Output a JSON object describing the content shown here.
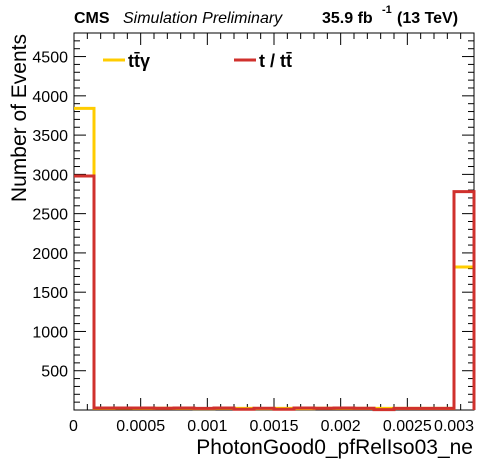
{
  "header": {
    "experiment": "CMS",
    "status": "Simulation Preliminary",
    "luminosity": "35.9 fb",
    "luminosity_exp": "-1",
    "energy": "(13 TeV)"
  },
  "chart_data": {
    "type": "step-histogram",
    "xlabel": "PhotonGood0_pfRelIso03_ne",
    "ylabel": "Number of Events",
    "xlim": [
      0,
      0.003
    ],
    "ylim": [
      0,
      4800
    ],
    "x_tick_labels": [
      "0",
      "0.0005",
      "0.001",
      "0.0015",
      "0.002",
      "0.0025",
      "0.003"
    ],
    "x_ticks": [
      0,
      0.0005,
      0.001,
      0.0015,
      0.002,
      0.0025,
      0.003
    ],
    "y_tick_labels": [
      "500",
      "1000",
      "1500",
      "2000",
      "2500",
      "3000",
      "3500",
      "4000",
      "4500"
    ],
    "y_ticks": [
      500,
      1000,
      1500,
      2000,
      2500,
      3000,
      3500,
      4000,
      4500
    ],
    "bin_edges": [
      0,
      0.00015,
      0.0003,
      0.00045,
      0.0006,
      0.00075,
      0.0009,
      0.00105,
      0.0012,
      0.00135,
      0.0015,
      0.00165,
      0.0018,
      0.00195,
      0.0021,
      0.00225,
      0.0024,
      0.00255,
      0.0027,
      0.00285,
      0.003
    ],
    "series": [
      {
        "name": "tt̄γ",
        "color": "#FFCC00",
        "values": [
          3840,
          20,
          22,
          20,
          22,
          20,
          18,
          20,
          20,
          18,
          20,
          18,
          22,
          20,
          20,
          20,
          20,
          20,
          20,
          1820
        ]
      },
      {
        "name": "t / tt̄",
        "color": "#D0312D",
        "values": [
          2980,
          25,
          25,
          25,
          22,
          25,
          20,
          25,
          10,
          22,
          10,
          25,
          22,
          25,
          22,
          5,
          20,
          20,
          20,
          2780
        ]
      }
    ],
    "legend_position": "top-left"
  }
}
